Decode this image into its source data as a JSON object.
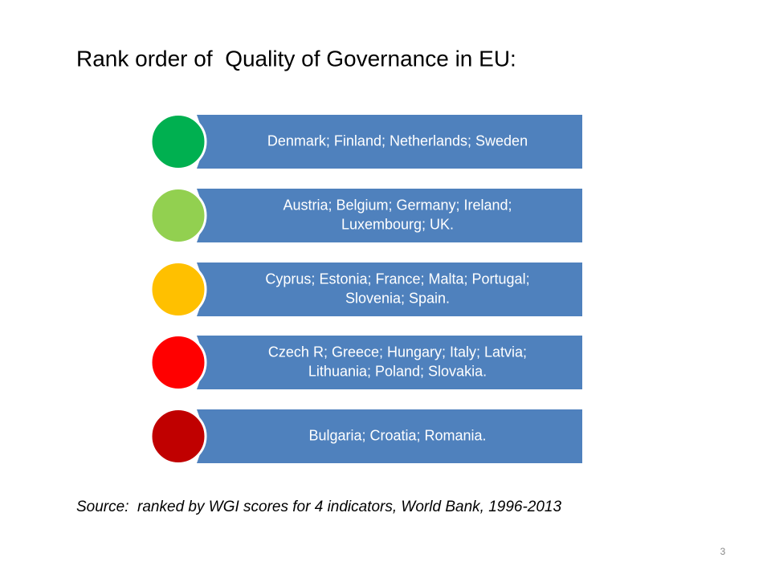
{
  "header": {
    "title": "Rank order of  Quality of Governance in EU:"
  },
  "items": [
    {
      "lines": [
        "Denmark; Finland; Netherlands; Sweden"
      ]
    },
    {
      "lines": [
        "Austria; Belgium; Germany; Ireland;",
        "Luxembourg; UK."
      ]
    },
    {
      "lines": [
        "Cyprus; Estonia; France; Malta; Portugal;",
        "Slovenia; Spain."
      ]
    },
    {
      "lines": [
        "Czech R; Greece; Hungary; Italy; Latvia;",
        "Lithuania; Poland; Slovakia."
      ]
    },
    {
      "lines": [
        "Bulgaria; Croatia; Romania."
      ]
    }
  ],
  "footer": {
    "source": "Source:  ranked by WGI scores for 4 indicators, World Bank, 1996-2013",
    "page_number": "3"
  }
}
